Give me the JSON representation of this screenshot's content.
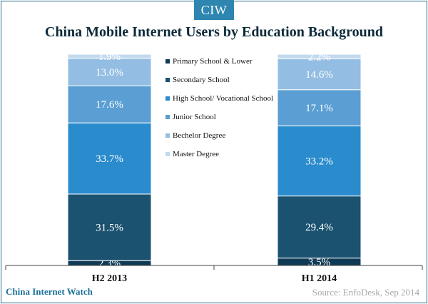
{
  "brand": {
    "badge": "CIW"
  },
  "footer": {
    "left": "China Internet Watch",
    "right": "Source: EnfoDesk, Sep 2014"
  },
  "chart_data": {
    "type": "bar",
    "stacked": true,
    "title": "China Mobile Internet Users by Education Background",
    "categories": [
      "H2 2013",
      "H1 2014"
    ],
    "series": [
      {
        "name": "Primary School & Lower",
        "values": [
          2.3,
          3.5
        ],
        "color": "#0f3a55"
      },
      {
        "name": "Secondary School",
        "values": [
          31.5,
          29.4
        ],
        "color": "#1b5270"
      },
      {
        "name": "High School/ Vocational School",
        "values": [
          33.7,
          33.2
        ],
        "color": "#2a8bcd"
      },
      {
        "name": "Junior School",
        "values": [
          17.6,
          17.1
        ],
        "color": "#5a9ed3"
      },
      {
        "name": "Bechelor Degree",
        "values": [
          13.0,
          14.6
        ],
        "color": "#93bde2"
      },
      {
        "name": "Master Degree",
        "values": [
          1.9,
          2.2
        ],
        "color": "#c3daee"
      }
    ],
    "value_labels": [
      [
        "2.3%",
        "31.5%",
        "33.7%",
        "17.6%",
        "13.0%",
        "1.9%"
      ],
      [
        "3.5%",
        "29.4%",
        "33.2%",
        "17.1%",
        "14.6%",
        "2.2%"
      ]
    ],
    "ylim": [
      0,
      100
    ],
    "legend_position": "center",
    "grid": false
  }
}
